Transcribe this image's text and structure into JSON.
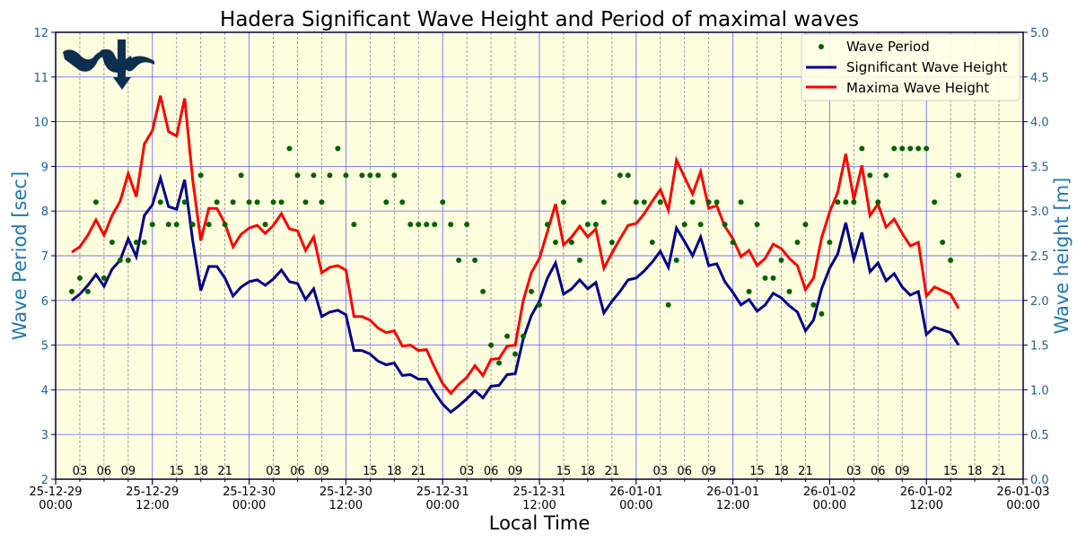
{
  "chart_data": {
    "type": "line",
    "title": "Hadera Significant Wave Height and Period of maximal waves",
    "xlabel": "Local Time",
    "ylabel_left": "Wave Period [sec]",
    "ylabel_right": "Wave height [m]",
    "ylim_left": [
      2,
      12
    ],
    "ylim_right": [
      0,
      5
    ],
    "xlim_hours": [
      0,
      120
    ],
    "left_ticks": [
      "2",
      "3",
      "4",
      "5",
      "6",
      "7",
      "8",
      "9",
      "10",
      "11",
      "12"
    ],
    "right_ticks": [
      "0.0",
      "0.5",
      "1.0",
      "1.5",
      "2.0",
      "2.5",
      "3.0",
      "3.5",
      "4.0",
      "4.5",
      "5.0"
    ],
    "major_ticks": [
      {
        "hour": 0,
        "line1": "25-12-29",
        "line2": "00:00"
      },
      {
        "hour": 12,
        "line1": "25-12-29",
        "line2": "12:00"
      },
      {
        "hour": 24,
        "line1": "25-12-30",
        "line2": "00:00"
      },
      {
        "hour": 36,
        "line1": "25-12-30",
        "line2": "12:00"
      },
      {
        "hour": 48,
        "line1": "25-12-31",
        "line2": "00:00"
      },
      {
        "hour": 60,
        "line1": "25-12-31",
        "line2": "12:00"
      },
      {
        "hour": 72,
        "line1": "26-01-01",
        "line2": "00:00"
      },
      {
        "hour": 84,
        "line1": "26-01-01",
        "line2": "12:00"
      },
      {
        "hour": 96,
        "line1": "26-01-02",
        "line2": "00:00"
      },
      {
        "hour": 108,
        "line1": "26-01-02",
        "line2": "12:00"
      },
      {
        "hour": 120,
        "line1": "26-01-03",
        "line2": "00:00"
      }
    ],
    "minor_tick_labels": [
      "03",
      "06",
      "09",
      "15",
      "18",
      "21"
    ],
    "legend": {
      "position": "top-right",
      "entries": [
        "Wave Period",
        "Significant Wave Height",
        "Maxima Wave Height"
      ]
    },
    "colors": {
      "background": "#ffffe0",
      "period": "#006400",
      "hs": "#00008b",
      "hmax": "#ff0000",
      "major_grid": "#7070ff",
      "axis_label": "#1f77b4"
    },
    "start_hour": 2,
    "series": [
      {
        "name": "Wave Period",
        "axis": "left",
        "values": [
          6.2,
          6.5,
          6.2,
          8.2,
          6.5,
          7.3,
          6.9,
          6.9,
          7.3,
          7.3,
          7.7,
          8.2,
          7.7,
          7.7,
          8.2,
          7.7,
          8.8,
          7.7,
          8.2,
          7.7,
          8.2,
          8.8,
          8.2,
          8.2,
          7.7,
          8.2,
          8.2,
          9.4,
          8.8,
          8.2,
          8.8,
          8.2,
          8.8,
          9.4,
          8.8,
          7.7,
          8.8,
          8.8,
          8.8,
          8.2,
          8.8,
          8.2,
          7.7,
          7.7,
          7.7,
          7.7,
          8.2,
          7.7,
          6.9,
          7.7,
          6.9,
          6.2,
          5.0,
          4.6,
          5.2,
          4.8,
          5.2,
          6.2,
          5.9,
          7.7,
          7.3,
          8.2,
          7.3,
          6.9,
          7.7,
          7.7,
          8.2,
          7.3,
          8.8,
          8.8,
          8.2,
          8.2,
          7.3,
          8.2,
          5.9,
          6.9,
          7.7,
          8.2,
          7.7,
          8.2,
          8.2,
          7.7,
          7.3,
          8.2,
          6.2,
          7.7,
          6.5,
          6.5,
          6.9,
          6.2,
          7.3,
          7.7,
          5.9,
          5.7,
          7.3,
          8.2,
          8.2,
          8.2,
          9.4,
          8.8,
          8.2,
          8.8,
          9.4,
          9.4,
          9.4,
          9.4,
          9.4,
          8.2,
          7.3,
          6.9,
          8.8
        ]
      },
      {
        "name": "Significant Wave Height",
        "axis": "right",
        "values": [
          2.0,
          2.07,
          2.17,
          2.29,
          2.16,
          2.35,
          2.45,
          2.69,
          2.49,
          2.95,
          3.07,
          3.37,
          3.05,
          3.02,
          3.35,
          2.67,
          2.11,
          2.38,
          2.38,
          2.25,
          2.05,
          2.15,
          2.21,
          2.23,
          2.17,
          2.24,
          2.34,
          2.21,
          2.19,
          2.01,
          2.13,
          1.82,
          1.87,
          1.89,
          1.84,
          1.44,
          1.44,
          1.4,
          1.32,
          1.28,
          1.3,
          1.16,
          1.17,
          1.12,
          1.12,
          0.97,
          0.84,
          0.75,
          0.82,
          0.9,
          0.99,
          0.91,
          1.04,
          1.05,
          1.17,
          1.18,
          1.57,
          1.83,
          1.99,
          2.25,
          2.42,
          2.07,
          2.13,
          2.23,
          2.13,
          2.2,
          1.86,
          1.99,
          2.1,
          2.23,
          2.25,
          2.33,
          2.43,
          2.55,
          2.37,
          2.81,
          2.66,
          2.5,
          2.71,
          2.39,
          2.41,
          2.21,
          2.09,
          1.95,
          2.01,
          1.88,
          1.95,
          2.08,
          2.03,
          1.94,
          1.87,
          1.66,
          1.78,
          2.13,
          2.36,
          2.52,
          2.87,
          2.46,
          2.76,
          2.32,
          2.42,
          2.22,
          2.3,
          2.15,
          2.06,
          2.1,
          1.62,
          1.7,
          1.67,
          1.64,
          1.5
        ]
      },
      {
        "name": "Maxima Wave Height",
        "axis": "right",
        "values": [
          2.54,
          2.6,
          2.73,
          2.9,
          2.73,
          2.95,
          3.11,
          3.42,
          3.16,
          3.75,
          3.9,
          4.29,
          3.89,
          3.84,
          4.26,
          3.35,
          2.67,
          3.03,
          3.03,
          2.86,
          2.6,
          2.74,
          2.81,
          2.84,
          2.75,
          2.84,
          2.97,
          2.8,
          2.78,
          2.56,
          2.71,
          2.31,
          2.37,
          2.39,
          2.34,
          1.82,
          1.82,
          1.78,
          1.69,
          1.64,
          1.66,
          1.49,
          1.5,
          1.44,
          1.45,
          1.25,
          1.07,
          0.96,
          1.06,
          1.14,
          1.27,
          1.16,
          1.34,
          1.35,
          1.49,
          1.5,
          2.0,
          2.31,
          2.47,
          2.77,
          3.08,
          2.62,
          2.71,
          2.83,
          2.71,
          2.8,
          2.36,
          2.53,
          2.69,
          2.84,
          2.86,
          2.97,
          3.11,
          3.24,
          3.01,
          3.57,
          3.38,
          3.19,
          3.44,
          3.03,
          3.06,
          2.83,
          2.69,
          2.49,
          2.56,
          2.39,
          2.47,
          2.63,
          2.58,
          2.47,
          2.39,
          2.12,
          2.25,
          2.7,
          2.99,
          3.21,
          3.64,
          3.13,
          3.51,
          2.95,
          3.08,
          2.82,
          2.91,
          2.75,
          2.61,
          2.65,
          2.05,
          2.15,
          2.11,
          2.07,
          1.91
        ]
      }
    ]
  }
}
